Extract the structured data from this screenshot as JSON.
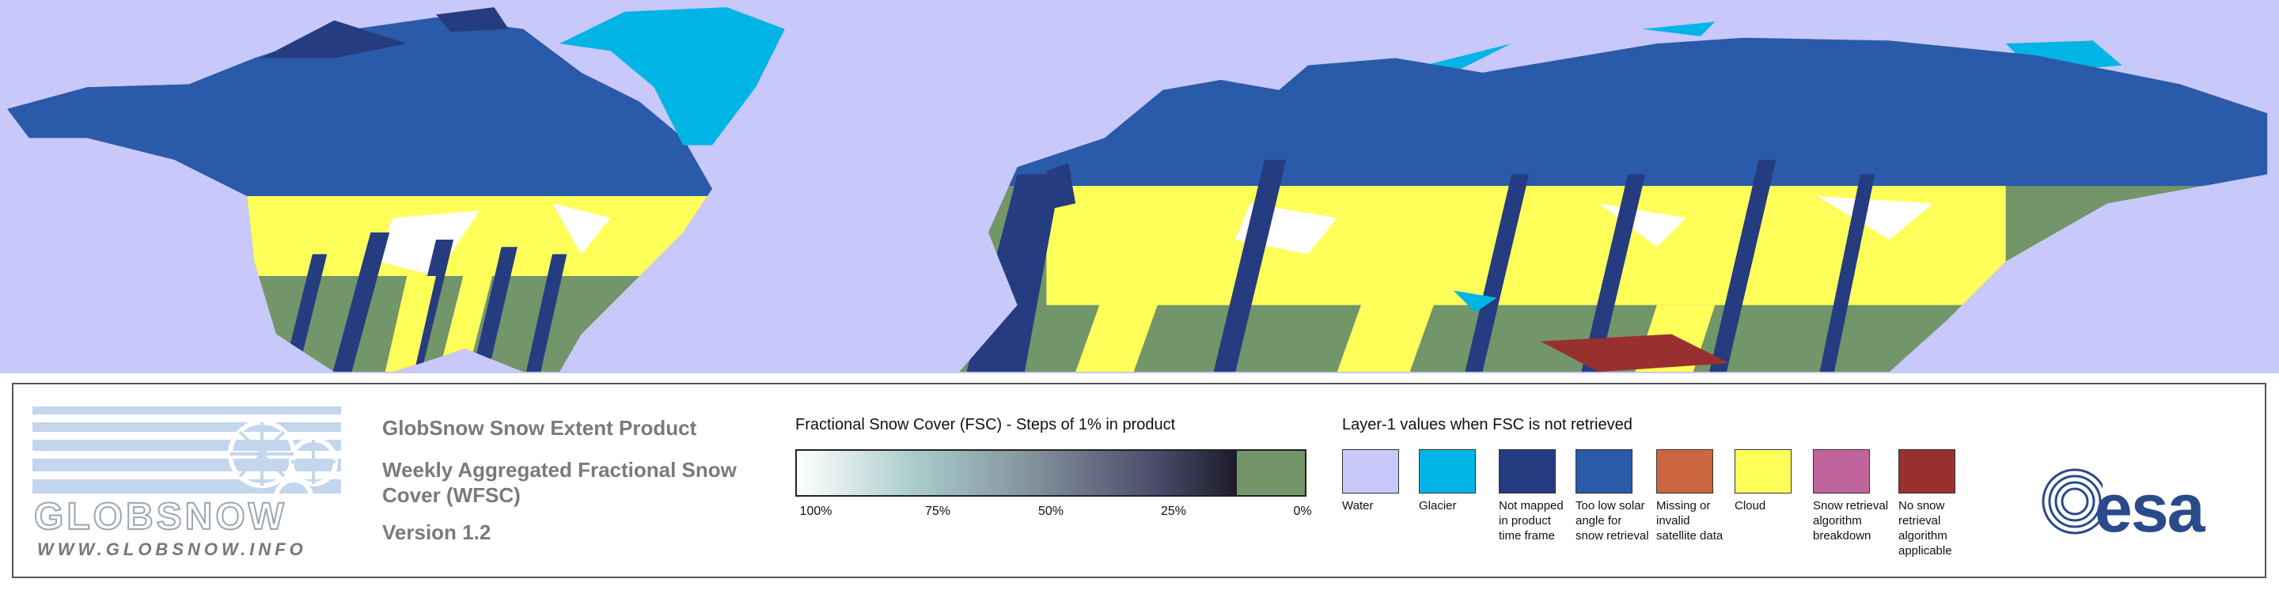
{
  "logo": {
    "name": "GLOBSNOW",
    "url": "WWW.GLOBSNOW.INFO"
  },
  "header": {
    "product": "GlobSnow Snow Extent Product",
    "subtitle": "Weekly Aggregated Fractional Snow Cover (WFSC)",
    "version": "Version 1.2"
  },
  "fsc_legend": {
    "title": "Fractional Snow Cover (FSC) - Steps of 1% in product",
    "ticks": [
      "100%",
      "75%",
      "50%",
      "25%",
      "0%"
    ]
  },
  "layer_legend": {
    "title": "Layer-1 values when FSC is not retrieved",
    "items": [
      {
        "label": "Water",
        "color": "#c8c8fa"
      },
      {
        "label": "Glacier",
        "color": "#00b4e6"
      },
      {
        "label": "Not mapped in product time frame",
        "color": "#253c80"
      },
      {
        "label": "Too low solar angle for snow retrieval",
        "color": "#2a5aaa"
      },
      {
        "label": "Missing or invalid satellite data",
        "color": "#cc6640"
      },
      {
        "label": "Cloud",
        "color": "#ffff5a"
      },
      {
        "label": "Snow retrieval algorithm breakdown",
        "color": "#c0649c"
      },
      {
        "label": "No snow retrieval algorithm applicable",
        "color": "#983030"
      }
    ]
  },
  "esa_logo": "esa"
}
